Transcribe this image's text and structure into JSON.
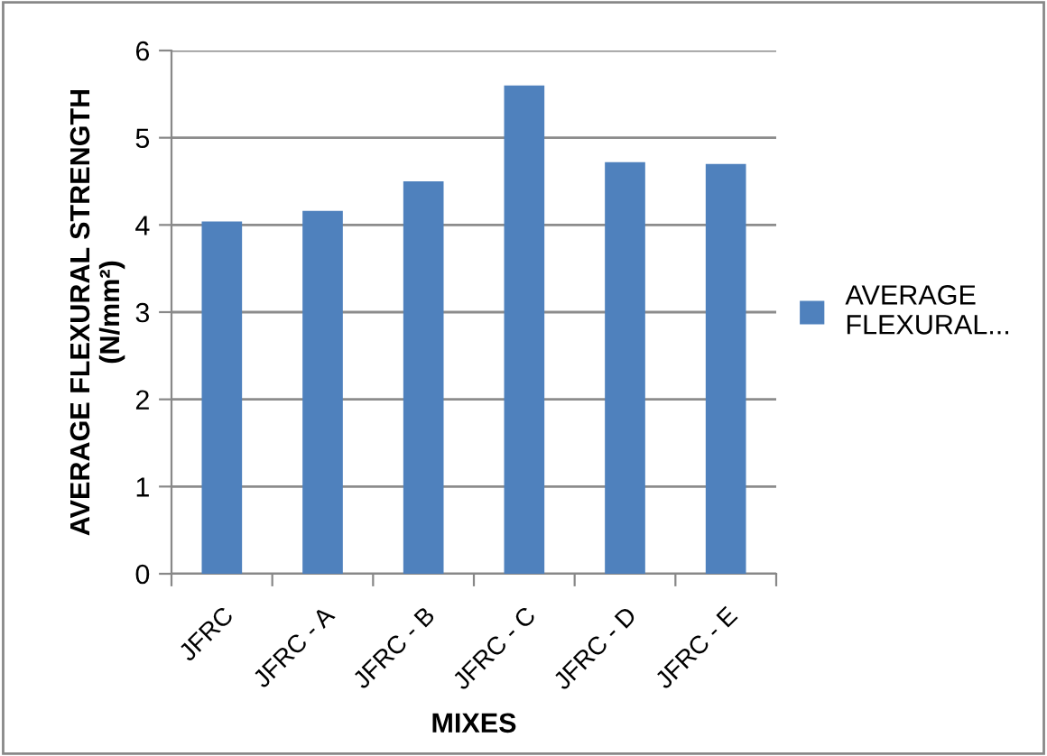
{
  "chart_data": {
    "type": "bar",
    "xlabel": "MIXES",
    "ylabel": "AVERAGE FLEXURAL STRENGTH\n(N/mm²)",
    "categories": [
      "JFRC",
      "JFRC - A",
      "JFRC - B",
      "JFRC - C",
      "JFRC - D",
      "JFRC - E"
    ],
    "series": [
      {
        "name": "AVERAGE\nFLEXURAL...",
        "color": "#4f81bd",
        "values": [
          4.04,
          4.16,
          4.5,
          5.6,
          4.72,
          4.7
        ]
      }
    ],
    "ylim": [
      0,
      6
    ],
    "yticks": [
      0,
      1,
      2,
      3,
      4,
      5,
      6
    ],
    "grid": "y",
    "legend": "right"
  }
}
